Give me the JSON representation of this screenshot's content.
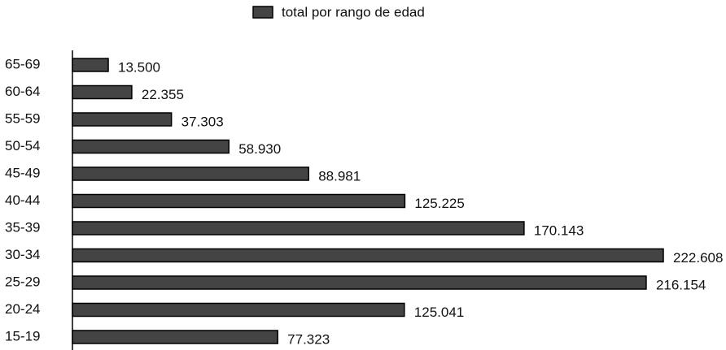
{
  "chart_data": {
    "type": "bar",
    "orientation": "horizontal",
    "series": [
      {
        "name": "total por rango de edad",
        "color": "#444444",
        "values": [
          13500,
          22355,
          37303,
          58930,
          88981,
          125225,
          170143,
          222608,
          216154,
          125041,
          77323
        ],
        "value_labels": [
          "13.500",
          "22.355",
          "37.303",
          "58.930",
          "88.981",
          "125.225",
          "170.143",
          "222.608",
          "216.154",
          "125.041",
          "77.323"
        ]
      }
    ],
    "categories": [
      "65-69",
      "60-64",
      "55-59",
      "50-54",
      "45-49",
      "40-44",
      "35-39",
      "30-34",
      "25-29",
      "20-24",
      "15-19"
    ]
  }
}
